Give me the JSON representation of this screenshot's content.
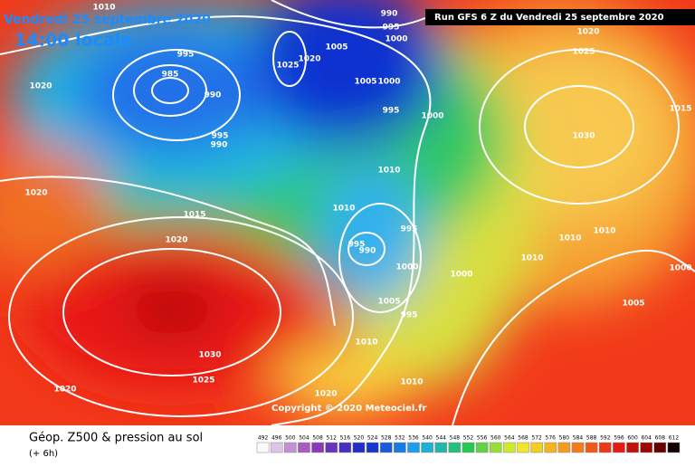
{
  "header": {
    "date": "Vendredi 25 septembre 2020",
    "time": "14:00 locale",
    "run": "Run GFS 6 Z du Vendredi 25 septembre 2020"
  },
  "isobar_labels": [
    "1010",
    "990",
    "995",
    "1000",
    "1020",
    "1025",
    "1020",
    "995",
    "985",
    "990",
    "1005",
    "1020",
    "1025",
    "1005",
    "1000",
    "995",
    "1000",
    "1015",
    "1030",
    "995",
    "990",
    "1010",
    "1020",
    "1010",
    "1015",
    "995",
    "995",
    "990",
    "1020",
    "1010",
    "1010",
    "1010",
    "1000",
    "1000",
    "1000",
    "1005",
    "995",
    "1005",
    "1010",
    "1030",
    "1025",
    "1010",
    "1020",
    "1020"
  ],
  "copyright": "Copyright © 2020 Meteociel.fr",
  "legend": {
    "title": "Géop. Z500 & pression au sol",
    "subtitle": "(+ 6h)",
    "scale": [
      492,
      496,
      500,
      504,
      508,
      512,
      516,
      520,
      524,
      528,
      532,
      536,
      540,
      544,
      548,
      552,
      556,
      560,
      564,
      568,
      572,
      576,
      580,
      584,
      588,
      592,
      596,
      600,
      604,
      608,
      612
    ]
  }
}
